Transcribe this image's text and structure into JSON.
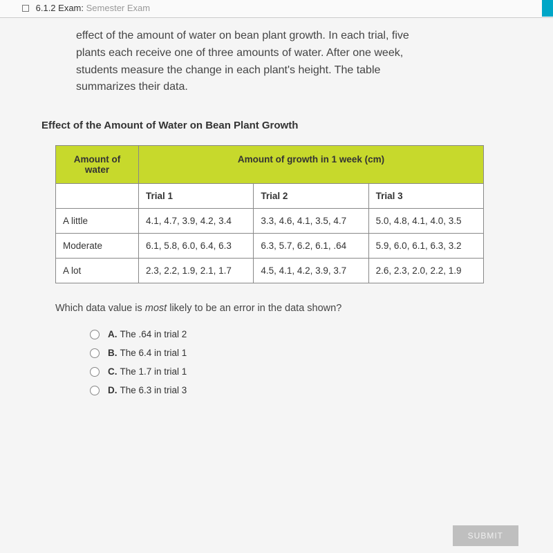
{
  "breadcrumb": {
    "section": "6.1.2 Exam:",
    "title": "Semester Exam"
  },
  "intro": "effect of the amount of water on bean plant growth. In each trial, five plants each receive one of three amounts of water. After one week, students measure the change in each plant's height. The table summarizes their data.",
  "table_title": "Effect of the Amount of Water on Bean Plant Growth",
  "table": {
    "header_left": "Amount of water",
    "header_right": "Amount of growth in 1 week (cm)",
    "trial_headers": [
      "Trial 1",
      "Trial 2",
      "Trial 3"
    ],
    "rows": [
      {
        "label": "A little",
        "t1": "4.1, 4.7, 3.9, 4.2, 3.4",
        "t2": "3.3, 4.6, 4.1, 3.5, 4.7",
        "t3": "5.0, 4.8, 4.1, 4.0, 3.5"
      },
      {
        "label": "Moderate",
        "t1": "6.1, 5.8, 6.0, 6.4, 6.3",
        "t2": "6.3, 5.7, 6.2, 6.1, .64",
        "t3": "5.9, 6.0, 6.1, 6.3, 3.2"
      },
      {
        "label": "A lot",
        "t1": "2.3, 2.2, 1.9, 2.1, 1.7",
        "t2": "4.5, 4.1, 4.2, 3.9, 3.7",
        "t3": "2.6, 2.3, 2.0, 2.2, 1.9"
      }
    ]
  },
  "question_pre": "Which data value is ",
  "question_ital": "most",
  "question_post": " likely to be an error in the data shown?",
  "options": [
    {
      "letter": "A.",
      "text": "The .64 in trial 2"
    },
    {
      "letter": "B.",
      "text": "The 6.4 in trial 1"
    },
    {
      "letter": "C.",
      "text": "The 1.7 in trial 1"
    },
    {
      "letter": "D.",
      "text": "The 6.3 in trial 3"
    }
  ],
  "submit_label": "SUBMIT",
  "colors": {
    "header_bg": "#c7d92c",
    "accent": "#00a6c7",
    "submit_bg": "#bfbfbf"
  }
}
